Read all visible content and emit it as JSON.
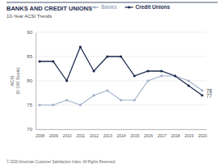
{
  "chart_data": {
    "type": "line",
    "title": "BANKS AND CREDIT UNIONS",
    "subtitle": "13-Year ACSI Trends",
    "y_label": "ACSI (0-100 Scale)",
    "footer": "© 2020 American Customer Satisfaction Index. All Rights Reserved.",
    "categories": [
      "2008",
      "2009",
      "2010",
      "2011",
      "2012",
      "2013",
      "2014",
      "2015",
      "2016",
      "2017",
      "2018",
      "2019",
      "2020"
    ],
    "series": [
      {
        "name": "Banks",
        "color": "#9fb0c8",
        "marker": "circle",
        "line_style": "solid",
        "values": [
          75,
          75,
          76,
          75,
          77,
          78,
          76,
          76,
          80,
          81,
          81,
          80,
          78
        ]
      },
      {
        "name": "Credit Unions",
        "color": "#1b2b4d",
        "marker": "circle",
        "line_style": "solid",
        "values": [
          84,
          84,
          80,
          87,
          82,
          85,
          85,
          81,
          82,
          82,
          81,
          79,
          77
        ]
      }
    ],
    "ylim": [
      70,
      90
    ],
    "yticks": [
      70,
      75,
      80,
      85,
      90
    ],
    "grid": true,
    "legend": "top"
  }
}
